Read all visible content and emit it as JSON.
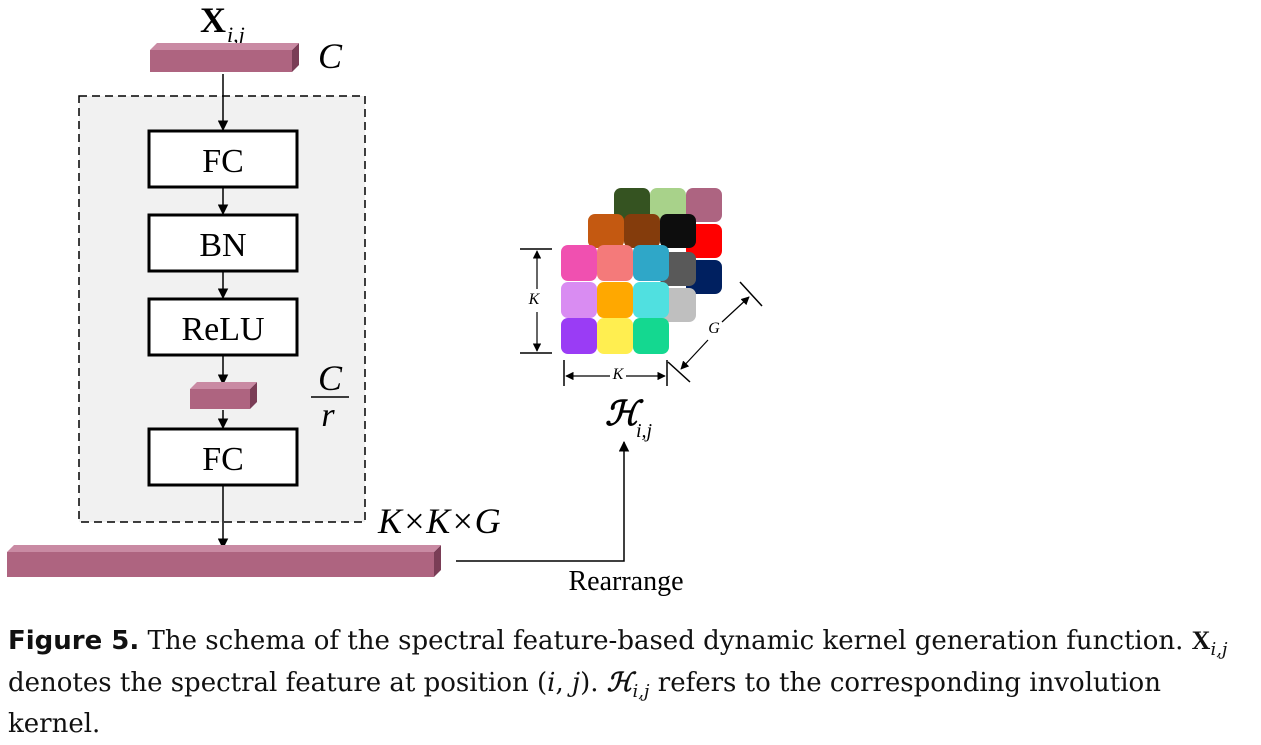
{
  "diagram": {
    "input_label": "X",
    "input_subscript": "i,j",
    "input_dim": "C",
    "blocks": [
      {
        "id": "fc1",
        "label": "FC"
      },
      {
        "id": "bn",
        "label": "BN"
      },
      {
        "id": "relu",
        "label": "ReLU"
      },
      {
        "id": "fc2",
        "label": "FC"
      }
    ],
    "mid_dim_numerator": "C",
    "mid_dim_denominator": "r",
    "output_dim": "K×K×G",
    "rearrange_label": "Rearrange",
    "kernel_label": "ℋ",
    "kernel_subscript": "i,j",
    "kernel_dim_k_vertical": "K",
    "kernel_dim_k_horizontal": "K",
    "kernel_dim_g": "G",
    "colors": {
      "feature_bar": "#ae6480",
      "feature_bar_dark": "#7a3d56",
      "dashed_bg": "#f1f1f1",
      "kernel_back": [
        "#355321",
        "#a8d28a",
        "#ad6481",
        "#ff0000",
        "#002060",
        "#bfbfbf"
      ],
      "kernel_mid": [
        "#c45911",
        "#843c0c",
        "#0d0d0d",
        "#595959"
      ],
      "kernel_front": [
        "#f050b0",
        "#f47a7a",
        "#2fa7c8",
        "#d98cf2",
        "#ffa800",
        "#50e0e0",
        "#9a3cf5",
        "#ffee50",
        "#14d890"
      ]
    }
  },
  "caption": {
    "figure_label": "Figure 5.",
    "text_1": " The schema of the spectral feature-based dynamic kernel generation function. ",
    "symbol_x": "X",
    "symbol_x_sub": "i,j",
    "text_2": " denotes the spectral feature at position (",
    "pos_i": "i",
    "pos_sep": ", ",
    "pos_j": "j",
    "text_3": "). ",
    "symbol_h": "ℋ",
    "symbol_h_sub": "i,j",
    "text_4": " refers to the corresponding involution kernel."
  }
}
